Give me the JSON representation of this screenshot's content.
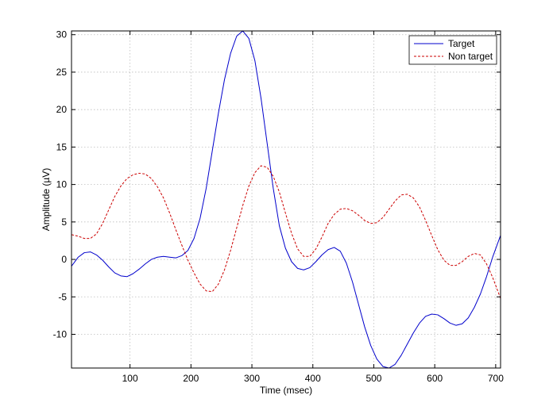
{
  "chart_data": {
    "type": "line",
    "title": "",
    "xlabel": "Time (msec)",
    "ylabel": "Amplitude (µV)",
    "xlim": [
      4,
      708
    ],
    "ylim": [
      -14.5,
      30.5
    ],
    "xticks": [
      100,
      200,
      300,
      400,
      500,
      600,
      700
    ],
    "yticks": [
      -10,
      -5,
      0,
      5,
      10,
      15,
      20,
      25,
      30
    ],
    "grid": true,
    "legend_position": "top-right",
    "series": [
      {
        "name": "Target",
        "color": "#0000cc",
        "style": "solid",
        "points": [
          [
            4,
            -0.9
          ],
          [
            15,
            0.3
          ],
          [
            25,
            0.9
          ],
          [
            35,
            1.0
          ],
          [
            45,
            0.6
          ],
          [
            55,
            -0.1
          ],
          [
            65,
            -1.0
          ],
          [
            75,
            -1.8
          ],
          [
            85,
            -2.2
          ],
          [
            95,
            -2.3
          ],
          [
            105,
            -1.9
          ],
          [
            115,
            -1.3
          ],
          [
            125,
            -0.6
          ],
          [
            135,
            0.0
          ],
          [
            145,
            0.3
          ],
          [
            155,
            0.4
          ],
          [
            165,
            0.3
          ],
          [
            175,
            0.2
          ],
          [
            185,
            0.5
          ],
          [
            195,
            1.2
          ],
          [
            205,
            2.8
          ],
          [
            215,
            5.5
          ],
          [
            225,
            9.5
          ],
          [
            235,
            14.5
          ],
          [
            245,
            19.5
          ],
          [
            255,
            24.0
          ],
          [
            265,
            27.5
          ],
          [
            275,
            29.8
          ],
          [
            285,
            30.5
          ],
          [
            295,
            29.5
          ],
          [
            305,
            26.5
          ],
          [
            315,
            21.5
          ],
          [
            325,
            15.5
          ],
          [
            335,
            9.5
          ],
          [
            345,
            4.5
          ],
          [
            355,
            1.5
          ],
          [
            365,
            -0.3
          ],
          [
            375,
            -1.2
          ],
          [
            385,
            -1.4
          ],
          [
            395,
            -1.1
          ],
          [
            405,
            -0.3
          ],
          [
            415,
            0.6
          ],
          [
            425,
            1.3
          ],
          [
            435,
            1.6
          ],
          [
            445,
            1.1
          ],
          [
            455,
            -0.5
          ],
          [
            465,
            -3.0
          ],
          [
            475,
            -6.0
          ],
          [
            485,
            -9.0
          ],
          [
            495,
            -11.5
          ],
          [
            505,
            -13.3
          ],
          [
            515,
            -14.3
          ],
          [
            525,
            -14.5
          ],
          [
            535,
            -14.0
          ],
          [
            545,
            -12.8
          ],
          [
            555,
            -11.3
          ],
          [
            565,
            -9.8
          ],
          [
            575,
            -8.5
          ],
          [
            585,
            -7.6
          ],
          [
            595,
            -7.3
          ],
          [
            605,
            -7.4
          ],
          [
            615,
            -7.9
          ],
          [
            625,
            -8.5
          ],
          [
            635,
            -8.8
          ],
          [
            645,
            -8.6
          ],
          [
            655,
            -7.8
          ],
          [
            665,
            -6.4
          ],
          [
            675,
            -4.6
          ],
          [
            685,
            -2.3
          ],
          [
            695,
            0.3
          ],
          [
            708,
            3.2
          ]
        ]
      },
      {
        "name": "Non target",
        "color": "#cc0000",
        "style": "dashed",
        "points": [
          [
            4,
            3.3
          ],
          [
            15,
            3.1
          ],
          [
            25,
            2.8
          ],
          [
            35,
            2.8
          ],
          [
            45,
            3.4
          ],
          [
            55,
            4.8
          ],
          [
            65,
            6.6
          ],
          [
            75,
            8.4
          ],
          [
            85,
            9.8
          ],
          [
            95,
            10.8
          ],
          [
            105,
            11.3
          ],
          [
            115,
            11.5
          ],
          [
            125,
            11.4
          ],
          [
            135,
            10.8
          ],
          [
            145,
            9.7
          ],
          [
            155,
            8.2
          ],
          [
            165,
            6.2
          ],
          [
            175,
            4.0
          ],
          [
            185,
            1.9
          ],
          [
            195,
            -0.1
          ],
          [
            205,
            -1.8
          ],
          [
            215,
            -3.3
          ],
          [
            225,
            -4.2
          ],
          [
            235,
            -4.3
          ],
          [
            245,
            -3.3
          ],
          [
            255,
            -1.4
          ],
          [
            265,
            1.2
          ],
          [
            275,
            4.2
          ],
          [
            285,
            7.2
          ],
          [
            295,
            9.8
          ],
          [
            305,
            11.6
          ],
          [
            315,
            12.5
          ],
          [
            325,
            12.3
          ],
          [
            335,
            11.1
          ],
          [
            345,
            9.0
          ],
          [
            355,
            6.2
          ],
          [
            365,
            3.5
          ],
          [
            375,
            1.4
          ],
          [
            385,
            0.4
          ],
          [
            395,
            0.4
          ],
          [
            405,
            1.4
          ],
          [
            415,
            3.0
          ],
          [
            425,
            4.8
          ],
          [
            435,
            6.0
          ],
          [
            445,
            6.7
          ],
          [
            455,
            6.8
          ],
          [
            465,
            6.5
          ],
          [
            475,
            5.9
          ],
          [
            485,
            5.2
          ],
          [
            495,
            4.8
          ],
          [
            505,
            4.9
          ],
          [
            515,
            5.6
          ],
          [
            525,
            6.7
          ],
          [
            535,
            7.8
          ],
          [
            545,
            8.6
          ],
          [
            555,
            8.7
          ],
          [
            565,
            8.2
          ],
          [
            575,
            7.0
          ],
          [
            585,
            5.2
          ],
          [
            595,
            3.2
          ],
          [
            605,
            1.3
          ],
          [
            615,
            -0.1
          ],
          [
            625,
            -0.8
          ],
          [
            635,
            -0.8
          ],
          [
            645,
            -0.3
          ],
          [
            655,
            0.4
          ],
          [
            665,
            0.8
          ],
          [
            675,
            0.6
          ],
          [
            685,
            -0.6
          ],
          [
            695,
            -2.4
          ],
          [
            708,
            -5.2
          ]
        ]
      }
    ]
  }
}
